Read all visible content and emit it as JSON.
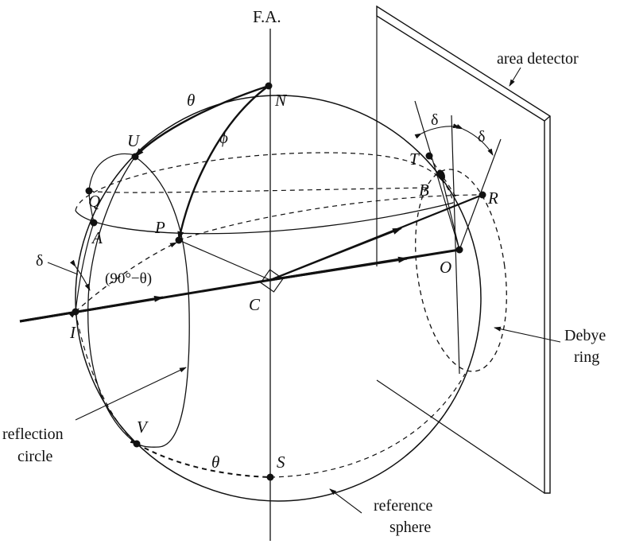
{
  "labels": {
    "fa": "F.A.",
    "area_detector": "area detector",
    "debye_line1": "Debye",
    "debye_line2": "ring",
    "reflection_line1": "reflection",
    "reflection_line2": "circle",
    "reference_line1": "reference",
    "reference_line2": "sphere",
    "angle_90": "(90°−θ)",
    "delta": "δ",
    "theta": "θ",
    "phi": "ϕ"
  },
  "points": {
    "N": "N",
    "S": "S",
    "U": "U",
    "Q": "Q",
    "A": "A",
    "P": "P",
    "I": "I",
    "C": "C",
    "V": "V",
    "T": "T",
    "B": "B",
    "R": "R",
    "O": "O"
  },
  "colors": {
    "ink": "#111111",
    "background": "#ffffff"
  }
}
